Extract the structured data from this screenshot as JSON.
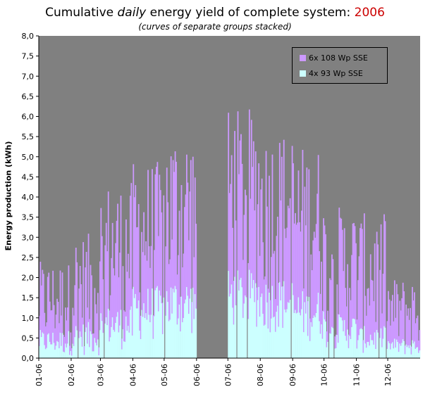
{
  "title": {
    "prefix": "Cumulative ",
    "emph": "daily",
    "suffix": " energy yield of complete system: ",
    "year": "2006"
  },
  "subtitle": "(curves of separate groups stacked)",
  "colors": {
    "plot_bg": "#808080",
    "series_top": "#cc99ff",
    "series_bottom": "#ccffff",
    "year": "#cc0000"
  },
  "chart_data": {
    "type": "area",
    "ylabel": "Energy production (kWh)",
    "ylim": [
      0,
      8
    ],
    "yticks": [
      "0,0",
      "0,5",
      "1,0",
      "1,5",
      "2,0",
      "2,5",
      "3,0",
      "3,5",
      "4,0",
      "4,5",
      "5,0",
      "5,5",
      "6,0",
      "6,5",
      "7,0",
      "7,5",
      "8,0"
    ],
    "xticks": [
      "01-06",
      "02-06",
      "03-06",
      "04-06",
      "05-06",
      "06-06",
      "07-06",
      "08-06",
      "09-06",
      "10-06",
      "11-06",
      "12-06"
    ],
    "grid": false,
    "legend_position": "top-right",
    "series": [
      {
        "name": "6x 108 Wp SSE",
        "color": "#cc99ff",
        "monthly_approx_daily_total_range_kwh": [
          [
            0.2,
            2.4
          ],
          [
            0.2,
            3.1
          ],
          [
            0.4,
            4.4
          ],
          [
            0.8,
            4.9
          ],
          [
            1.0,
            5.8
          ],
          [
            0.0,
            0.0
          ],
          [
            1.5,
            6.2
          ],
          [
            1.3,
            5.7
          ],
          [
            0.9,
            5.3
          ],
          [
            0.4,
            3.8
          ],
          [
            0.3,
            3.6
          ],
          [
            0.1,
            2.0
          ]
        ]
      },
      {
        "name": "4x 93 Wp SSE",
        "color": "#ccffff",
        "monthly_approx_daily_range_kwh": [
          [
            0.05,
            0.7
          ],
          [
            0.05,
            0.9
          ],
          [
            0.2,
            1.3
          ],
          [
            0.4,
            1.8
          ],
          [
            0.5,
            2.0
          ],
          [
            0.0,
            0.0
          ],
          [
            0.7,
            2.2
          ],
          [
            0.6,
            2.0
          ],
          [
            0.4,
            1.7
          ],
          [
            0.2,
            1.1
          ],
          [
            0.1,
            0.8
          ],
          [
            0.05,
            0.5
          ]
        ]
      }
    ],
    "outage_period": "06-06"
  }
}
